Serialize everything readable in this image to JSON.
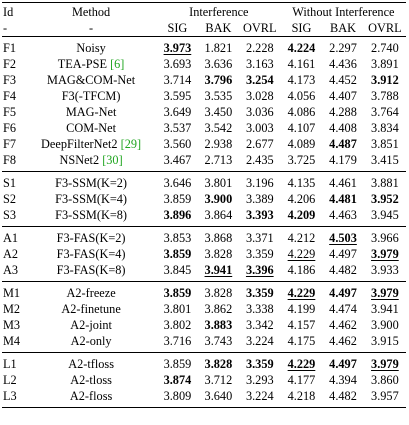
{
  "header": {
    "id": "Id",
    "method": "Method",
    "interference": "Interference",
    "without_interference": "Without Interference",
    "metrics": [
      "SIG",
      "BAK",
      "OVRL",
      "SIG",
      "BAK",
      "OVRL"
    ],
    "dash": "-"
  },
  "rows": [
    {
      "id": "F1",
      "method": "Noisy",
      "ref": "",
      "v": [
        [
          "3.973",
          "bu"
        ],
        [
          "1.821",
          ""
        ],
        [
          "2.228",
          ""
        ],
        [
          "4.224",
          "b"
        ],
        [
          "2.297",
          ""
        ],
        [
          "2.740",
          ""
        ]
      ]
    },
    {
      "id": "F2",
      "method": "TEA-PSE",
      "ref": "[6]",
      "v": [
        [
          "3.693",
          ""
        ],
        [
          "3.636",
          ""
        ],
        [
          "3.163",
          ""
        ],
        [
          "4.161",
          ""
        ],
        [
          "4.436",
          ""
        ],
        [
          "3.891",
          ""
        ]
      ]
    },
    {
      "id": "F3",
      "method": "MAG&COM-Net",
      "ref": "",
      "v": [
        [
          "3.714",
          ""
        ],
        [
          "3.796",
          "b"
        ],
        [
          "3.254",
          "b"
        ],
        [
          "4.173",
          ""
        ],
        [
          "4.452",
          ""
        ],
        [
          "3.912",
          "b"
        ]
      ]
    },
    {
      "id": "F4",
      "method": "F3(-TFCM)",
      "ref": "",
      "v": [
        [
          "3.595",
          ""
        ],
        [
          "3.535",
          ""
        ],
        [
          "3.028",
          ""
        ],
        [
          "4.056",
          ""
        ],
        [
          "4.407",
          ""
        ],
        [
          "3.788",
          ""
        ]
      ]
    },
    {
      "id": "F5",
      "method": "MAG-Net",
      "ref": "",
      "v": [
        [
          "3.649",
          ""
        ],
        [
          "3.450",
          ""
        ],
        [
          "3.036",
          ""
        ],
        [
          "4.086",
          ""
        ],
        [
          "4.288",
          ""
        ],
        [
          "3.764",
          ""
        ]
      ]
    },
    {
      "id": "F6",
      "method": "COM-Net",
      "ref": "",
      "v": [
        [
          "3.537",
          ""
        ],
        [
          "3.542",
          ""
        ],
        [
          "3.003",
          ""
        ],
        [
          "4.107",
          ""
        ],
        [
          "4.408",
          ""
        ],
        [
          "3.834",
          ""
        ]
      ]
    },
    {
      "id": "F7",
      "method": "DeepFilterNet2",
      "ref": "[29]",
      "v": [
        [
          "3.560",
          ""
        ],
        [
          "2.938",
          ""
        ],
        [
          "2.677",
          ""
        ],
        [
          "4.089",
          ""
        ],
        [
          "4.487",
          "b"
        ],
        [
          "3.851",
          ""
        ]
      ]
    },
    {
      "id": "F8",
      "method": "NSNet2",
      "ref": "[30]",
      "v": [
        [
          "3.467",
          ""
        ],
        [
          "2.713",
          ""
        ],
        [
          "2.435",
          ""
        ],
        [
          "3.725",
          ""
        ],
        [
          "4.179",
          ""
        ],
        [
          "3.415",
          ""
        ]
      ]
    },
    {
      "id": "S1",
      "method": "F3-SSM(K=2)",
      "ref": "",
      "v": [
        [
          "3.646",
          ""
        ],
        [
          "3.801",
          ""
        ],
        [
          "3.196",
          ""
        ],
        [
          "4.135",
          ""
        ],
        [
          "4.461",
          ""
        ],
        [
          "3.881",
          ""
        ]
      ]
    },
    {
      "id": "S2",
      "method": "F3-SSM(K=4)",
      "ref": "",
      "v": [
        [
          "3.859",
          ""
        ],
        [
          "3.900",
          "b"
        ],
        [
          "3.389",
          ""
        ],
        [
          "4.206",
          ""
        ],
        [
          "4.481",
          "b"
        ],
        [
          "3.952",
          "b"
        ]
      ]
    },
    {
      "id": "S3",
      "method": "F3-SSM(K=8)",
      "ref": "",
      "v": [
        [
          "3.896",
          "b"
        ],
        [
          "3.864",
          ""
        ],
        [
          "3.393",
          "b"
        ],
        [
          "4.209",
          "b"
        ],
        [
          "4.463",
          ""
        ],
        [
          "3.945",
          ""
        ]
      ]
    },
    {
      "id": "A1",
      "method": "F3-FAS(K=2)",
      "ref": "",
      "v": [
        [
          "3.853",
          ""
        ],
        [
          "3.868",
          ""
        ],
        [
          "3.371",
          ""
        ],
        [
          "4.212",
          ""
        ],
        [
          "4.503",
          "bu"
        ],
        [
          "3.966",
          ""
        ]
      ]
    },
    {
      "id": "A2",
      "method": "F3-FAS(K=4)",
      "ref": "",
      "v": [
        [
          "3.859",
          "b"
        ],
        [
          "3.828",
          ""
        ],
        [
          "3.359",
          ""
        ],
        [
          "4.229",
          "u"
        ],
        [
          "4.497",
          ""
        ],
        [
          "3.979",
          "bu"
        ]
      ]
    },
    {
      "id": "A3",
      "method": "F3-FAS(K=8)",
      "ref": "",
      "v": [
        [
          "3.845",
          ""
        ],
        [
          "3.941",
          "bu"
        ],
        [
          "3.396",
          "bu"
        ],
        [
          "4.186",
          ""
        ],
        [
          "4.482",
          ""
        ],
        [
          "3.933",
          ""
        ]
      ]
    },
    {
      "id": "M1",
      "method": "A2-freeze",
      "ref": "",
      "v": [
        [
          "3.859",
          "b"
        ],
        [
          "3.828",
          ""
        ],
        [
          "3.359",
          "b"
        ],
        [
          "4.229",
          "bu"
        ],
        [
          "4.497",
          "b"
        ],
        [
          "3.979",
          "bu"
        ]
      ]
    },
    {
      "id": "M2",
      "method": "A2-finetune",
      "ref": "",
      "v": [
        [
          "3.801",
          ""
        ],
        [
          "3.862",
          ""
        ],
        [
          "3.338",
          ""
        ],
        [
          "4.199",
          ""
        ],
        [
          "4.474",
          ""
        ],
        [
          "3.941",
          ""
        ]
      ]
    },
    {
      "id": "M3",
      "method": "A2-joint",
      "ref": "",
      "v": [
        [
          "3.802",
          ""
        ],
        [
          "3.883",
          "b"
        ],
        [
          "3.342",
          ""
        ],
        [
          "4.157",
          ""
        ],
        [
          "4.462",
          ""
        ],
        [
          "3.900",
          ""
        ]
      ]
    },
    {
      "id": "M4",
      "method": "A2-only",
      "ref": "",
      "v": [
        [
          "3.716",
          ""
        ],
        [
          "3.743",
          ""
        ],
        [
          "3.224",
          ""
        ],
        [
          "4.175",
          ""
        ],
        [
          "4.462",
          ""
        ],
        [
          "3.915",
          ""
        ]
      ]
    },
    {
      "id": "L1",
      "method": "A2-tfloss",
      "ref": "",
      "v": [
        [
          "3.859",
          ""
        ],
        [
          "3.828",
          "b"
        ],
        [
          "3.359",
          "b"
        ],
        [
          "4.229",
          "bu"
        ],
        [
          "4.497",
          "b"
        ],
        [
          "3.979",
          "bu"
        ]
      ]
    },
    {
      "id": "L2",
      "method": "A2-tloss",
      "ref": "",
      "v": [
        [
          "3.874",
          "b"
        ],
        [
          "3.712",
          ""
        ],
        [
          "3.293",
          ""
        ],
        [
          "4.177",
          ""
        ],
        [
          "4.394",
          ""
        ],
        [
          "3.860",
          ""
        ]
      ]
    },
    {
      "id": "L3",
      "method": "A2-floss",
      "ref": "",
      "v": [
        [
          "3.809",
          ""
        ],
        [
          "3.640",
          ""
        ],
        [
          "3.224",
          ""
        ],
        [
          "4.218",
          ""
        ],
        [
          "4.482",
          ""
        ],
        [
          "3.957",
          ""
        ]
      ]
    }
  ],
  "groups": [
    [
      0,
      7
    ],
    [
      8,
      10
    ],
    [
      11,
      13
    ],
    [
      14,
      17
    ],
    [
      18,
      20
    ]
  ]
}
